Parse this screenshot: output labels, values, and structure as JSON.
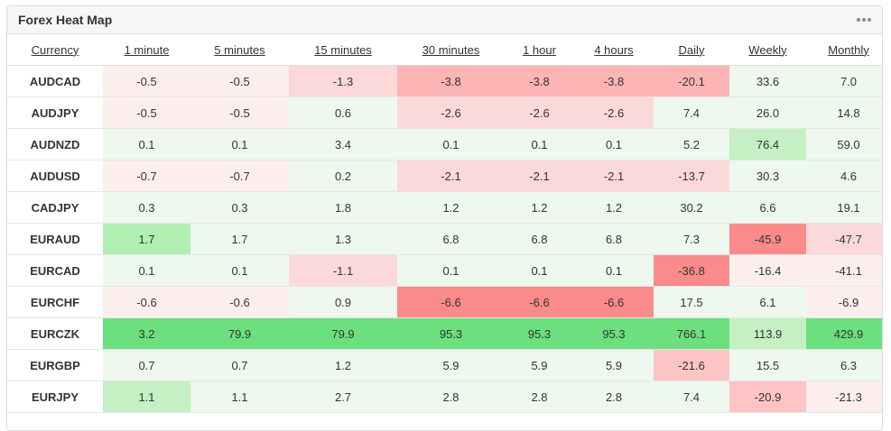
{
  "widget": {
    "title": "Forex Heat Map",
    "menu_icon": "more-dots-icon"
  },
  "columns": [
    "Currency",
    "1 minute",
    "5 minutes",
    "15 minutes",
    "30 minutes",
    "1 hour",
    "4 hours",
    "Daily",
    "Weekly",
    "Monthly"
  ],
  "palette": {
    "neutral": "#ffffff",
    "green_1": "#eef8ee",
    "green_2": "#c4f0c4",
    "green_3": "#b2efb2",
    "green_4": "#6ce07c",
    "red_1": "#fdeeee",
    "red_2": "#fcd9d9",
    "red_3": "#fcc4c4",
    "red_4": "#fcb4b4",
    "red_5": "#fb8a8a"
  },
  "rows": [
    {
      "pair": "AUDCAD",
      "values": [
        "-0.5",
        "-0.5",
        "-1.3",
        "-3.8",
        "-3.8",
        "-3.8",
        "-20.1",
        "33.6",
        "7.0"
      ],
      "shades": [
        "red_1",
        "red_1",
        "red_2",
        "red_4",
        "red_4",
        "red_4",
        "red_4",
        "green_1",
        "green_1"
      ]
    },
    {
      "pair": "AUDJPY",
      "values": [
        "-0.5",
        "-0.5",
        "0.6",
        "-2.6",
        "-2.6",
        "-2.6",
        "7.4",
        "26.0",
        "14.8"
      ],
      "shades": [
        "red_1",
        "red_1",
        "green_1",
        "red_2",
        "red_2",
        "red_2",
        "green_1",
        "green_1",
        "green_1"
      ]
    },
    {
      "pair": "AUDNZD",
      "values": [
        "0.1",
        "0.1",
        "3.4",
        "0.1",
        "0.1",
        "0.1",
        "5.2",
        "76.4",
        "59.0"
      ],
      "shades": [
        "green_1",
        "green_1",
        "green_1",
        "green_1",
        "green_1",
        "green_1",
        "green_1",
        "green_2",
        "green_1"
      ]
    },
    {
      "pair": "AUDUSD",
      "values": [
        "-0.7",
        "-0.7",
        "0.2",
        "-2.1",
        "-2.1",
        "-2.1",
        "-13.7",
        "30.3",
        "4.6"
      ],
      "shades": [
        "red_1",
        "red_1",
        "green_1",
        "red_2",
        "red_2",
        "red_2",
        "red_2",
        "green_1",
        "green_1"
      ]
    },
    {
      "pair": "CADJPY",
      "values": [
        "0.3",
        "0.3",
        "1.8",
        "1.2",
        "1.2",
        "1.2",
        "30.2",
        "6.6",
        "19.1"
      ],
      "shades": [
        "green_1",
        "green_1",
        "green_1",
        "green_1",
        "green_1",
        "green_1",
        "green_1",
        "green_1",
        "green_1"
      ]
    },
    {
      "pair": "EURAUD",
      "values": [
        "1.7",
        "1.7",
        "1.3",
        "6.8",
        "6.8",
        "6.8",
        "7.3",
        "-45.9",
        "-47.7"
      ],
      "shades": [
        "green_3",
        "green_1",
        "green_1",
        "green_1",
        "green_1",
        "green_1",
        "green_1",
        "red_5",
        "red_2"
      ]
    },
    {
      "pair": "EURCAD",
      "values": [
        "0.1",
        "0.1",
        "-1.1",
        "0.1",
        "0.1",
        "0.1",
        "-36.8",
        "-16.4",
        "-41.1"
      ],
      "shades": [
        "green_1",
        "green_1",
        "red_2",
        "green_1",
        "green_1",
        "green_1",
        "red_5",
        "red_1",
        "red_1"
      ]
    },
    {
      "pair": "EURCHF",
      "values": [
        "-0.6",
        "-0.6",
        "0.9",
        "-6.6",
        "-6.6",
        "-6.6",
        "17.5",
        "6.1",
        "-6.9"
      ],
      "shades": [
        "red_1",
        "red_1",
        "green_1",
        "red_5",
        "red_5",
        "red_5",
        "green_1",
        "green_1",
        "red_1"
      ]
    },
    {
      "pair": "EURCZK",
      "values": [
        "3.2",
        "79.9",
        "79.9",
        "95.3",
        "95.3",
        "95.3",
        "766.1",
        "113.9",
        "429.9"
      ],
      "shades": [
        "green_4",
        "green_4",
        "green_4",
        "green_4",
        "green_4",
        "green_4",
        "green_4",
        "green_2",
        "green_4"
      ]
    },
    {
      "pair": "EURGBP",
      "values": [
        "0.7",
        "0.7",
        "1.2",
        "5.9",
        "5.9",
        "5.9",
        "-21.6",
        "15.5",
        "6.3"
      ],
      "shades": [
        "green_1",
        "green_1",
        "green_1",
        "green_1",
        "green_1",
        "green_1",
        "red_3",
        "green_1",
        "green_1"
      ]
    },
    {
      "pair": "EURJPY",
      "values": [
        "1.1",
        "1.1",
        "2.7",
        "2.8",
        "2.8",
        "2.8",
        "7.4",
        "-20.9",
        "-21.3"
      ],
      "shades": [
        "green_2",
        "green_1",
        "green_1",
        "green_1",
        "green_1",
        "green_1",
        "green_1",
        "red_3",
        "red_1"
      ]
    }
  ]
}
